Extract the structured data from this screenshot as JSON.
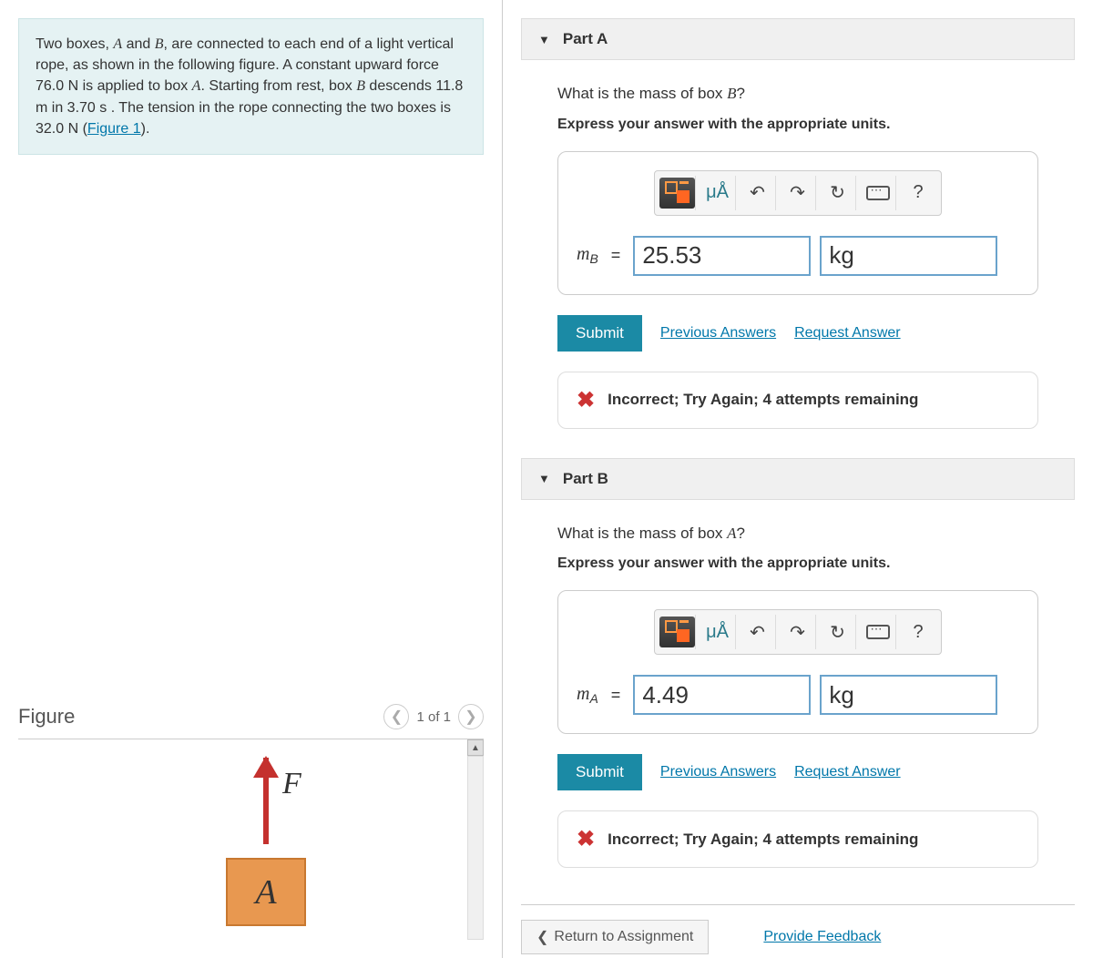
{
  "problem": {
    "text_parts": [
      "Two boxes, ",
      "A",
      " and ",
      "B",
      ", are connected to each end of a light vertical rope, as shown in the following figure. A constant upward force 76.0 N is applied to box ",
      "A",
      ". Starting from rest, box ",
      "B",
      " descends 11.8 m in 3.70 s . The tension in the rope connecting the two boxes is 32.0 N (",
      "Figure 1",
      ")."
    ]
  },
  "figure": {
    "title": "Figure",
    "nav_text": "1 of 1",
    "force_label": "F",
    "box_a_label": "A",
    "colors": {
      "arrow": "#c4312e",
      "box_fill": "#e89850",
      "box_border": "#c87830"
    }
  },
  "parts": [
    {
      "title": "Part A",
      "question_pre": "What is the mass of box ",
      "question_var": "B",
      "question_post": "?",
      "instruction": "Express your answer with the appropriate units.",
      "var_symbol": "m",
      "var_sub": "B",
      "value": "25.53",
      "unit": "kg",
      "submit": "Submit",
      "prev_answers": "Previous Answers",
      "request_answer": "Request Answer",
      "feedback": "Incorrect; Try Again; 4 attempts remaining"
    },
    {
      "title": "Part B",
      "question_pre": "What is the mass of box ",
      "question_var": "A",
      "question_post": "?",
      "instruction": "Express your answer with the appropriate units.",
      "var_symbol": "m",
      "var_sub": "A",
      "value": "4.49",
      "unit": "kg",
      "submit": "Submit",
      "prev_answers": "Previous Answers",
      "request_answer": "Request Answer",
      "feedback": "Incorrect; Try Again; 4 attempts remaining"
    }
  ],
  "toolbar": {
    "micro": "μÅ",
    "help": "?"
  },
  "footer": {
    "return": "Return to Assignment",
    "feedback": "Provide Feedback"
  },
  "colors": {
    "primary": "#1b8aa5",
    "link": "#0077aa",
    "error": "#cc3333",
    "highlight_bg": "#e5f2f3"
  }
}
